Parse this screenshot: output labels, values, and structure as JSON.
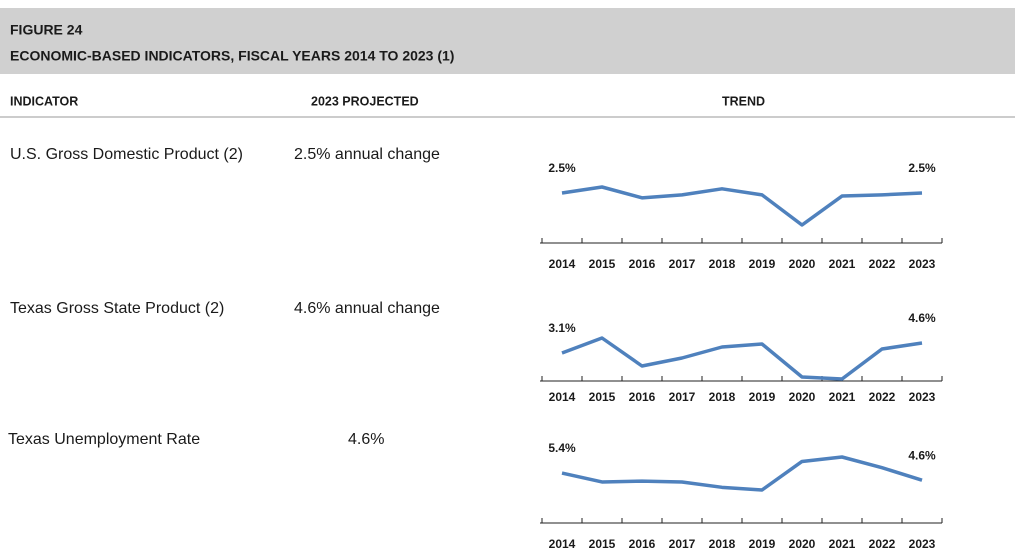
{
  "header": {
    "figure": "FIGURE 24",
    "title": "ECONOMIC-BASED INDICATORS, FISCAL YEARS 2014 TO 2023 (1)"
  },
  "table": {
    "columns": [
      "INDICATOR",
      "2023 PROJECTED",
      "TREND"
    ],
    "rows": [
      {
        "indicator": "U.S. Gross Domestic Product (2)",
        "projected": "2.5% annual change"
      },
      {
        "indicator": "Texas Gross State Product (2)",
        "projected": "4.6% annual change"
      },
      {
        "indicator": "Texas Unemployment Rate",
        "projected": "4.6%"
      }
    ]
  },
  "chart_data": [
    {
      "type": "line",
      "color": "#4f81bd",
      "categories": [
        "2014",
        "2015",
        "2016",
        "2017",
        "2018",
        "2019",
        "2020",
        "2021",
        "2022",
        "2023"
      ],
      "values": [
        2.5,
        3.5,
        1.7,
        2.2,
        3.2,
        2.2,
        -2.8,
        2.0,
        2.2,
        2.5
      ],
      "value_labels": [
        "2.5%",
        null,
        null,
        null,
        null,
        null,
        null,
        null,
        null,
        "2.5%"
      ]
    },
    {
      "type": "line",
      "color": "#4f81bd",
      "categories": [
        "2014",
        "2015",
        "2016",
        "2017",
        "2018",
        "2019",
        "2020",
        "2021",
        "2022",
        "2023"
      ],
      "values": [
        3.1,
        5.35,
        1.15,
        2.35,
        4.0,
        4.45,
        -0.5,
        -0.8,
        3.7,
        4.6
      ],
      "value_labels": [
        "3.1%",
        null,
        null,
        null,
        null,
        null,
        null,
        null,
        null,
        "4.6%"
      ]
    },
    {
      "type": "line",
      "color": "#4f81bd",
      "categories": [
        "2014",
        "2015",
        "2016",
        "2017",
        "2018",
        "2019",
        "2020",
        "2021",
        "2022",
        "2023"
      ],
      "values": [
        5.4,
        4.4,
        4.5,
        4.4,
        3.8,
        3.5,
        6.7,
        7.2,
        6.0,
        4.6
      ],
      "value_labels": [
        "5.4%",
        null,
        null,
        null,
        null,
        null,
        null,
        null,
        null,
        "4.6%"
      ]
    }
  ]
}
